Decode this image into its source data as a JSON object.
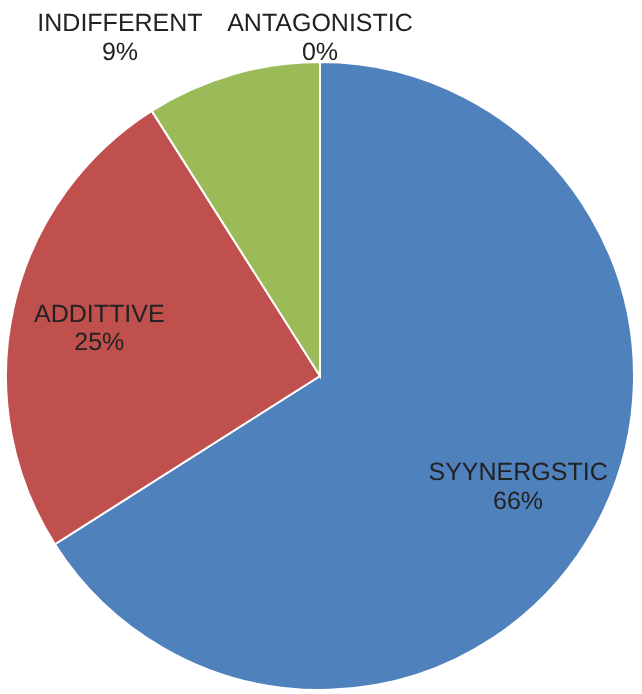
{
  "chart_data": {
    "type": "pie",
    "categories": [
      "SYYNERGSTIC",
      "ADDITTIVE",
      "INDIFFERENT",
      "ANTAGONISTIC"
    ],
    "values": [
      66,
      25,
      9,
      0
    ],
    "colors": [
      "#4f81bd",
      "#c0504d",
      "#9bbb59",
      "#8064a2"
    ],
    "value_labels": [
      "66%",
      "25%",
      "9%",
      "0%"
    ]
  }
}
